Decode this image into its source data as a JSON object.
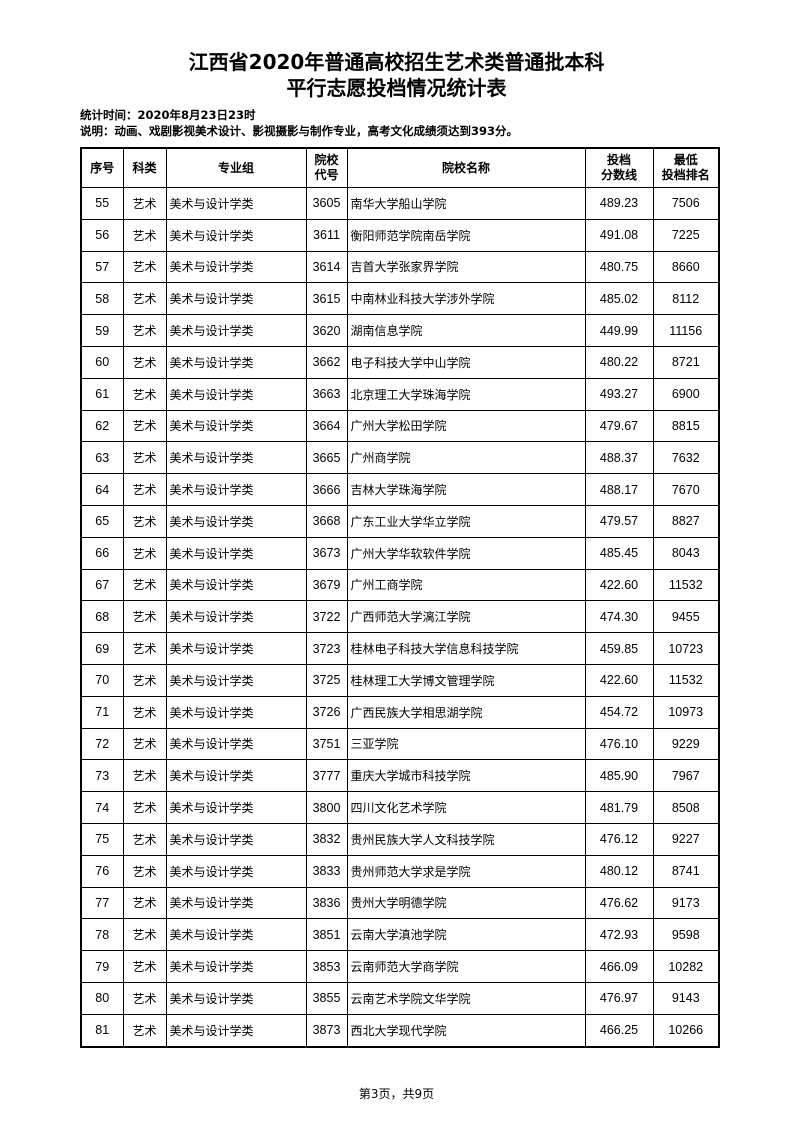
{
  "title": {
    "line1": "江西省2020年普通高校招生艺术类普通批本科",
    "line2": "平行志愿投档情况统计表"
  },
  "meta": {
    "time": "统计时间：2020年8月23日23时",
    "note": "说明：动画、戏剧影视美术设计、影视摄影与制作专业，高考文化成绩须达到393分。"
  },
  "table": {
    "headers": {
      "seq": "序号",
      "category": "科类",
      "group": "专业组",
      "code": [
        "院校",
        "代号"
      ],
      "name": "院校名称",
      "score": [
        "投档",
        "分数线"
      ],
      "rank": [
        "最低",
        "投档排名"
      ]
    },
    "rows": [
      [
        "55",
        "艺术",
        "美术与设计学类",
        "3605",
        "南华大学船山学院",
        "489.23",
        "7506"
      ],
      [
        "56",
        "艺术",
        "美术与设计学类",
        "3611",
        "衡阳师范学院南岳学院",
        "491.08",
        "7225"
      ],
      [
        "57",
        "艺术",
        "美术与设计学类",
        "3614",
        "吉首大学张家界学院",
        "480.75",
        "8660"
      ],
      [
        "58",
        "艺术",
        "美术与设计学类",
        "3615",
        "中南林业科技大学涉外学院",
        "485.02",
        "8112"
      ],
      [
        "59",
        "艺术",
        "美术与设计学类",
        "3620",
        "湖南信息学院",
        "449.99",
        "11156"
      ],
      [
        "60",
        "艺术",
        "美术与设计学类",
        "3662",
        "电子科技大学中山学院",
        "480.22",
        "8721"
      ],
      [
        "61",
        "艺术",
        "美术与设计学类",
        "3663",
        "北京理工大学珠海学院",
        "493.27",
        "6900"
      ],
      [
        "62",
        "艺术",
        "美术与设计学类",
        "3664",
        "广州大学松田学院",
        "479.67",
        "8815"
      ],
      [
        "63",
        "艺术",
        "美术与设计学类",
        "3665",
        "广州商学院",
        "488.37",
        "7632"
      ],
      [
        "64",
        "艺术",
        "美术与设计学类",
        "3666",
        "吉林大学珠海学院",
        "488.17",
        "7670"
      ],
      [
        "65",
        "艺术",
        "美术与设计学类",
        "3668",
        "广东工业大学华立学院",
        "479.57",
        "8827"
      ],
      [
        "66",
        "艺术",
        "美术与设计学类",
        "3673",
        "广州大学华软软件学院",
        "485.45",
        "8043"
      ],
      [
        "67",
        "艺术",
        "美术与设计学类",
        "3679",
        "广州工商学院",
        "422.60",
        "11532"
      ],
      [
        "68",
        "艺术",
        "美术与设计学类",
        "3722",
        "广西师范大学漓江学院",
        "474.30",
        "9455"
      ],
      [
        "69",
        "艺术",
        "美术与设计学类",
        "3723",
        "桂林电子科技大学信息科技学院",
        "459.85",
        "10723"
      ],
      [
        "70",
        "艺术",
        "美术与设计学类",
        "3725",
        "桂林理工大学博文管理学院",
        "422.60",
        "11532"
      ],
      [
        "71",
        "艺术",
        "美术与设计学类",
        "3726",
        "广西民族大学相思湖学院",
        "454.72",
        "10973"
      ],
      [
        "72",
        "艺术",
        "美术与设计学类",
        "3751",
        "三亚学院",
        "476.10",
        "9229"
      ],
      [
        "73",
        "艺术",
        "美术与设计学类",
        "3777",
        "重庆大学城市科技学院",
        "485.90",
        "7967"
      ],
      [
        "74",
        "艺术",
        "美术与设计学类",
        "3800",
        "四川文化艺术学院",
        "481.79",
        "8508"
      ],
      [
        "75",
        "艺术",
        "美术与设计学类",
        "3832",
        "贵州民族大学人文科技学院",
        "476.12",
        "9227"
      ],
      [
        "76",
        "艺术",
        "美术与设计学类",
        "3833",
        "贵州师范大学求是学院",
        "480.12",
        "8741"
      ],
      [
        "77",
        "艺术",
        "美术与设计学类",
        "3836",
        "贵州大学明德学院",
        "476.62",
        "9173"
      ],
      [
        "78",
        "艺术",
        "美术与设计学类",
        "3851",
        "云南大学滇池学院",
        "472.93",
        "9598"
      ],
      [
        "79",
        "艺术",
        "美术与设计学类",
        "3853",
        "云南师范大学商学院",
        "466.09",
        "10282"
      ],
      [
        "80",
        "艺术",
        "美术与设计学类",
        "3855",
        "云南艺术学院文华学院",
        "476.97",
        "9143"
      ],
      [
        "81",
        "艺术",
        "美术与设计学类",
        "3873",
        "西北大学现代学院",
        "466.25",
        "10266"
      ]
    ]
  },
  "footer": {
    "page": "第3页，共9页"
  }
}
